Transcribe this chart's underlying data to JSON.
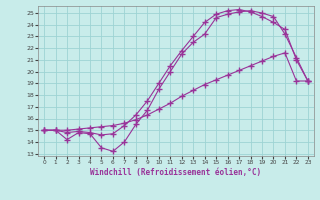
{
  "xlabel": "Windchill (Refroidissement éolien,°C)",
  "bg_color": "#c8ecea",
  "line_color": "#993399",
  "grid_color": "#9ed4d4",
  "xlim": [
    -0.5,
    23.5
  ],
  "ylim": [
    12.8,
    25.6
  ],
  "xticks": [
    0,
    1,
    2,
    3,
    4,
    5,
    6,
    7,
    8,
    9,
    10,
    11,
    12,
    13,
    14,
    15,
    16,
    17,
    18,
    19,
    20,
    21,
    22,
    23
  ],
  "yticks": [
    13,
    14,
    15,
    16,
    17,
    18,
    19,
    20,
    21,
    22,
    23,
    24,
    25
  ],
  "line1_x": [
    0,
    1,
    2,
    3,
    4,
    5,
    6,
    7,
    8,
    9,
    10,
    11,
    12,
    13,
    14,
    15,
    16,
    17,
    18,
    19,
    20,
    21,
    22,
    23
  ],
  "line1_y": [
    15.0,
    15.0,
    14.2,
    14.8,
    14.7,
    13.5,
    13.2,
    14.0,
    15.5,
    16.7,
    18.5,
    20.0,
    21.5,
    22.5,
    23.2,
    24.6,
    24.9,
    25.1,
    25.2,
    25.0,
    24.7,
    23.2,
    21.2,
    19.2
  ],
  "line2_x": [
    0,
    1,
    2,
    3,
    4,
    5,
    6,
    7,
    8,
    9,
    10,
    11,
    12,
    13,
    14,
    15,
    16,
    17,
    18,
    19,
    20,
    21,
    22,
    23
  ],
  "line2_y": [
    15.0,
    15.0,
    14.8,
    14.9,
    14.8,
    14.6,
    14.7,
    15.4,
    16.3,
    17.5,
    19.0,
    20.5,
    21.8,
    23.0,
    24.2,
    24.9,
    25.2,
    25.3,
    25.1,
    24.7,
    24.2,
    23.6,
    21.0,
    19.2
  ],
  "line3_x": [
    0,
    1,
    2,
    3,
    4,
    5,
    6,
    7,
    8,
    9,
    10,
    11,
    12,
    13,
    14,
    15,
    16,
    17,
    18,
    19,
    20,
    21,
    22,
    23
  ],
  "line3_y": [
    15.0,
    15.0,
    15.0,
    15.1,
    15.2,
    15.3,
    15.4,
    15.6,
    15.9,
    16.3,
    16.8,
    17.3,
    17.9,
    18.4,
    18.9,
    19.3,
    19.7,
    20.1,
    20.5,
    20.9,
    21.3,
    21.6,
    19.2,
    19.2
  ]
}
